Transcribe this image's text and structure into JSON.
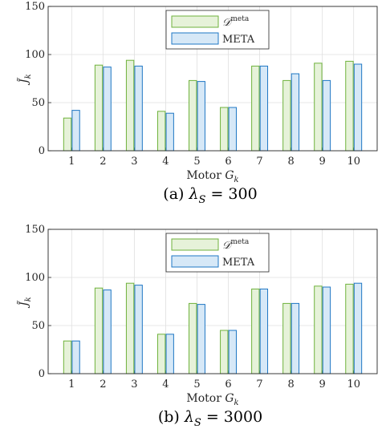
{
  "chart_data": [
    {
      "type": "bar",
      "categories": [
        "1",
        "2",
        "3",
        "4",
        "5",
        "6",
        "7",
        "8",
        "9",
        "10"
      ],
      "series": [
        {
          "name": "𝒟",
          "name_sup": "meta",
          "values": [
            34,
            89,
            94,
            41,
            73,
            45,
            88,
            73,
            91,
            93
          ]
        },
        {
          "name": "META",
          "values": [
            42,
            87,
            88,
            39,
            72,
            45,
            88,
            80,
            73,
            90
          ]
        }
      ],
      "xlabel": "Motor",
      "xlabel_var": "G",
      "xlabel_sub": "k",
      "ylabel_var": "J̃",
      "ylabel_sub": "k",
      "ylim": [
        0,
        150
      ],
      "yticks": [
        "0",
        "50",
        "100",
        "150"
      ],
      "grid": true,
      "legend": "top-center",
      "caption_prefix": "(a)",
      "caption_var": "λ",
      "caption_sub": "S",
      "caption_eq": " = 300"
    },
    {
      "type": "bar",
      "categories": [
        "1",
        "2",
        "3",
        "4",
        "5",
        "6",
        "7",
        "8",
        "9",
        "10"
      ],
      "series": [
        {
          "name": "𝒟",
          "name_sup": "meta",
          "values": [
            34,
            89,
            94,
            41,
            73,
            45,
            88,
            73,
            91,
            93
          ]
        },
        {
          "name": "META",
          "values": [
            34,
            87,
            92,
            41,
            72,
            45,
            88,
            73,
            90,
            94
          ]
        }
      ],
      "xlabel": "Motor",
      "xlabel_var": "G",
      "xlabel_sub": "k",
      "ylabel_var": "J̃",
      "ylabel_sub": "k",
      "ylim": [
        0,
        150
      ],
      "yticks": [
        "0",
        "50",
        "100",
        "150"
      ],
      "grid": true,
      "legend": "top-center",
      "caption_prefix": "(b)",
      "caption_var": "λ",
      "caption_sub": "S",
      "caption_eq": " = 3000"
    }
  ],
  "colors": {
    "series1_fill": "#e6f2d9",
    "series1_stroke": "#6fb23c",
    "series2_fill": "#d6e8f7",
    "series2_stroke": "#1f77c4",
    "grid": "#dfdfdf",
    "axis": "#262626"
  }
}
